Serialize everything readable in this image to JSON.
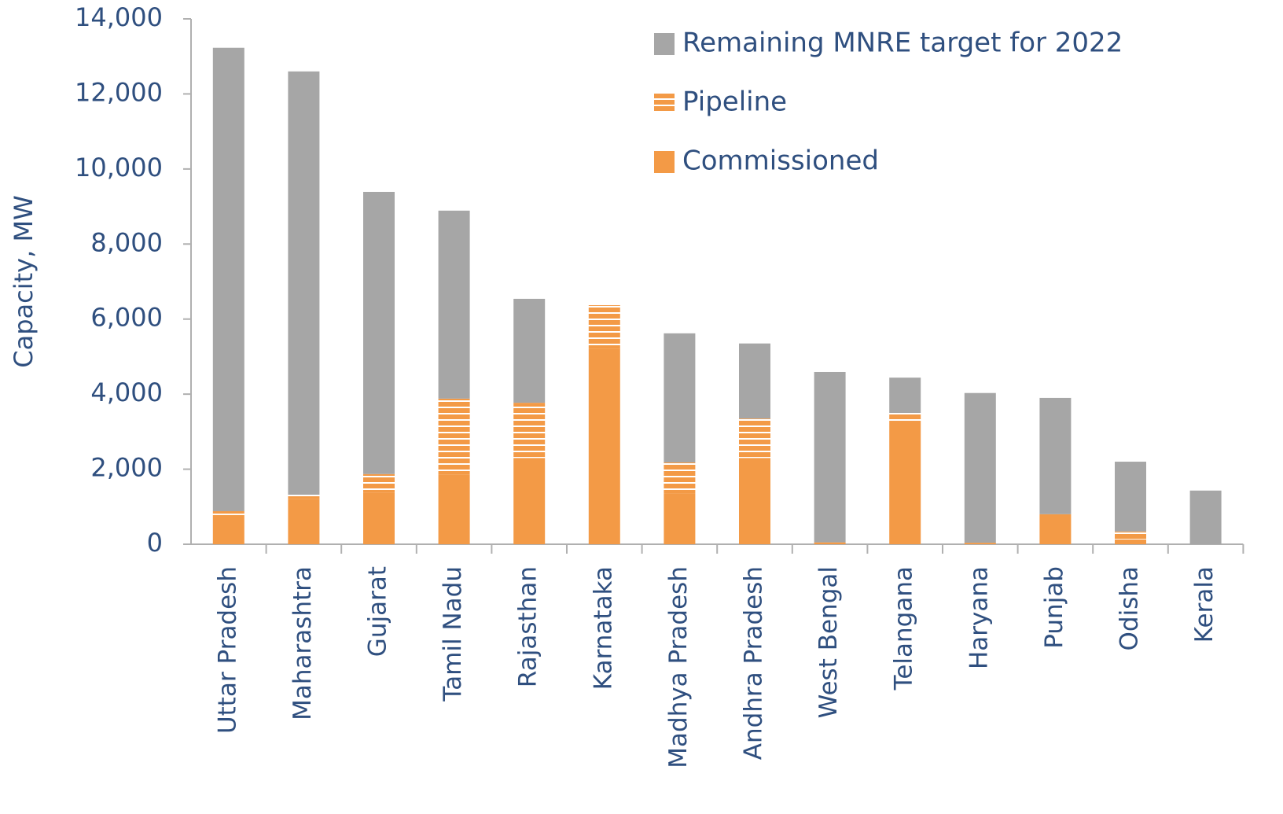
{
  "chart_data": {
    "type": "stacked_bar",
    "y_label": "Capacity, MW",
    "categories": [
      "Uttar Pradesh",
      "Maharashtra",
      "Gujarat",
      "Tamil Nadu",
      "Rajasthan",
      "Karnataka",
      "Madhya Pradesh",
      "Andhra Pradesh",
      "West Bengal",
      "Telangana",
      "Haryana",
      "Punjab",
      "Odisha",
      "Kerala"
    ],
    "series": [
      {
        "name": "Commissioned",
        "color": "#f39a46",
        "values": [
          780,
          1200,
          1380,
          1850,
          2300,
          5200,
          1360,
          2300,
          50,
          3290,
          40,
          800,
          130,
          0
        ]
      },
      {
        "name": "Pipeline",
        "color": "#f39a46",
        "pattern": "stripes",
        "values": [
          100,
          120,
          490,
          2030,
          1470,
          1170,
          820,
          1050,
          0,
          210,
          0,
          0,
          210,
          0
        ]
      },
      {
        "name": "Remaining MNRE target for 2022",
        "color": "#a6a6a6",
        "values": [
          12350,
          11280,
          7520,
          5010,
          2770,
          0,
          3440,
          2000,
          4540,
          940,
          3990,
          3100,
          1860,
          1430
        ]
      }
    ],
    "ylim": [
      0,
      14000
    ],
    "yticks": [
      0,
      {
        "value": 2000,
        "label": "2,000"
      },
      {
        "value": 4000,
        "label": "4,000"
      },
      {
        "value": 6000,
        "label": "6,000"
      },
      {
        "value": 8000,
        "label": "8,000"
      },
      {
        "value": 10000,
        "label": "10,000"
      },
      {
        "value": 12000,
        "label": "12,000"
      },
      {
        "value": 14000,
        "label": "14,000"
      }
    ],
    "legend": "top-right"
  }
}
